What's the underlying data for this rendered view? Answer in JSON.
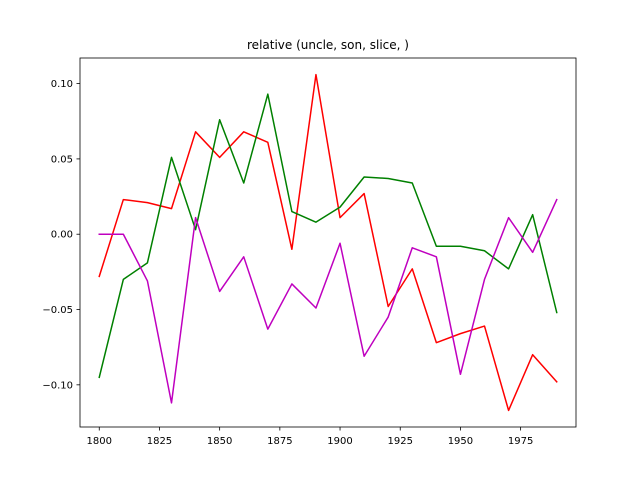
{
  "chart_data": {
    "type": "line",
    "title": "relative (uncle, son, slice, )",
    "xlabel": "",
    "ylabel": "",
    "xlim": [
      1792,
      1998
    ],
    "ylim": [
      -0.128,
      0.117
    ],
    "x_ticks": [
      1800,
      1825,
      1850,
      1875,
      1900,
      1925,
      1950,
      1975
    ],
    "x_tick_labels": [
      "1800",
      "1825",
      "1850",
      "1875",
      "1900",
      "1925",
      "1950",
      "1975"
    ],
    "y_ticks": [
      -0.1,
      -0.05,
      0.0,
      0.05,
      0.1
    ],
    "y_tick_labels": [
      "−0.10",
      "−0.05",
      "0.00",
      "0.05",
      "0.10"
    ],
    "grid": false,
    "legend": "none",
    "x": [
      1800,
      1810,
      1820,
      1830,
      1840,
      1850,
      1860,
      1870,
      1880,
      1890,
      1900,
      1910,
      1920,
      1930,
      1940,
      1950,
      1960,
      1970,
      1980,
      1990
    ],
    "series": [
      {
        "color": "#ff0000",
        "values": [
          -0.028,
          0.023,
          0.021,
          0.017,
          0.068,
          0.051,
          0.068,
          0.061,
          -0.01,
          0.106,
          0.011,
          0.027,
          -0.048,
          -0.023,
          -0.072,
          -0.066,
          -0.061,
          -0.117,
          -0.08,
          -0.098
        ]
      },
      {
        "color": "#008000",
        "values": [
          -0.095,
          -0.03,
          -0.019,
          0.051,
          0.003,
          0.076,
          0.034,
          0.093,
          0.015,
          0.008,
          0.018,
          0.038,
          0.037,
          0.034,
          -0.008,
          -0.008,
          -0.011,
          -0.023,
          0.013,
          -0.052
        ]
      },
      {
        "color": "#bf00bf",
        "values": [
          0.0,
          0.0,
          -0.031,
          -0.112,
          0.011,
          -0.038,
          -0.015,
          -0.063,
          -0.033,
          -0.049,
          -0.006,
          -0.081,
          -0.055,
          -0.009,
          -0.015,
          -0.093,
          -0.03,
          0.011,
          -0.012,
          0.023
        ]
      }
    ]
  }
}
